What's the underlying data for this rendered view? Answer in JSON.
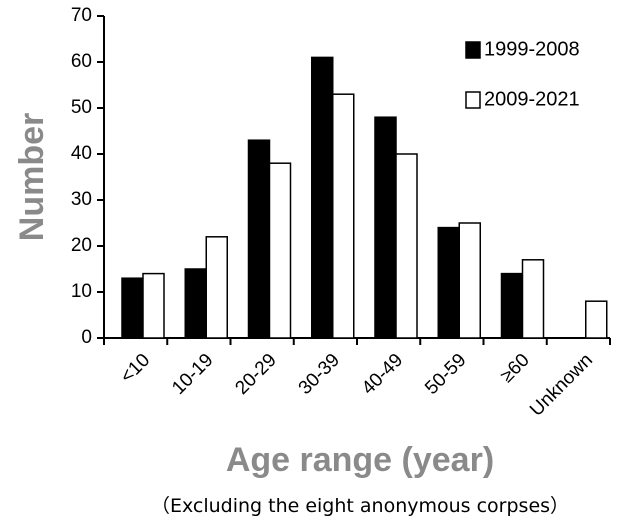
{
  "chart_data": {
    "type": "bar",
    "title": "",
    "xlabel": "Age range (year)",
    "ylabel": "Number",
    "note": "（Excluding the eight anonymous corpses）",
    "categories": [
      "<10",
      "10-19",
      "20-29",
      "30-39",
      "40-49",
      "50-59",
      "≥60",
      "Unknown"
    ],
    "series": [
      {
        "name": "1999-2008",
        "color": "#000000",
        "values": [
          13,
          15,
          43,
          61,
          48,
          24,
          14,
          0
        ]
      },
      {
        "name": "2009-2021",
        "color": "#ffffff",
        "values": [
          14,
          22,
          38,
          53,
          40,
          25,
          17,
          8
        ]
      }
    ],
    "ylim": [
      0,
      70
    ],
    "yticks": [
      0,
      10,
      20,
      30,
      40,
      50,
      60,
      70
    ],
    "grid": false,
    "legend": "top-right"
  }
}
